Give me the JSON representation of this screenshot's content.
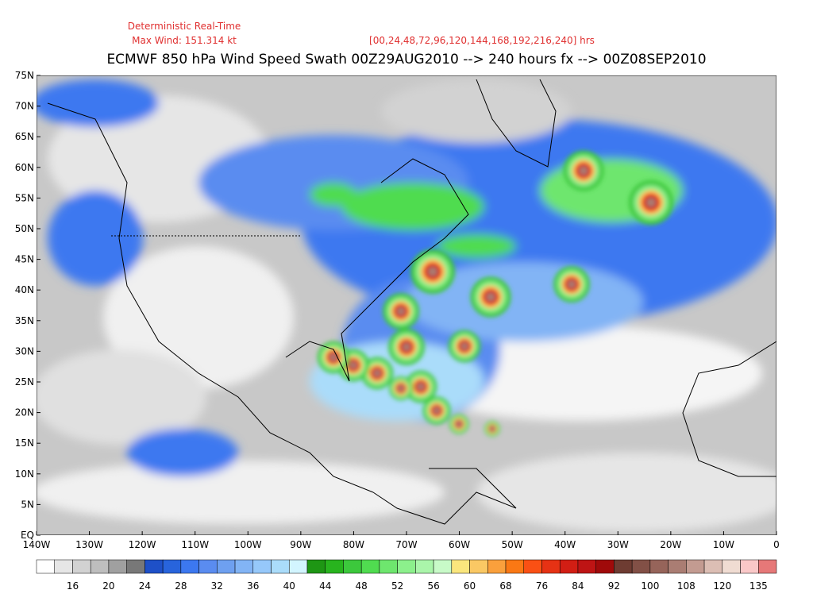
{
  "header": {
    "line1": "Deterministic Real-Time",
    "line2": "Max Wind: 151.314 kt",
    "hours": "[00,24,48,72,96,120,144,168,192,216,240] hrs",
    "title": "ECMWF 850 hPa Wind Speed Swath 00Z29AUG2010 --> 240 hours fx --> 00Z08SEP2010"
  },
  "map": {
    "lat_labels": [
      "75N",
      "70N",
      "65N",
      "60N",
      "55N",
      "50N",
      "45N",
      "40N",
      "35N",
      "30N",
      "25N",
      "20N",
      "15N",
      "10N",
      "5N",
      "EQ"
    ],
    "lon_labels": [
      "140W",
      "130W",
      "120W",
      "110W",
      "100W",
      "90W",
      "80W",
      "70W",
      "60W",
      "50W",
      "40W",
      "30W",
      "20W",
      "10W",
      "0"
    ]
  },
  "colorbar": {
    "colors": [
      "#ffffff",
      "#e6e6e6",
      "#d2d2d2",
      "#bebebe",
      "#a0a0a0",
      "#787878",
      "#1e50c8",
      "#2864dc",
      "#3c78f0",
      "#5a8cf0",
      "#6ea0f0",
      "#82b4f5",
      "#96c8fa",
      "#aadcfa",
      "#d2f5ff",
      "#1e9614",
      "#28b41e",
      "#3cc83c",
      "#50dc50",
      "#6ee66e",
      "#8cf08c",
      "#aaf5aa",
      "#c8fac8",
      "#fae67d",
      "#fac864",
      "#faa03c",
      "#fa7814",
      "#fa5014",
      "#e63214",
      "#d21e14",
      "#be1414",
      "#a00a0a",
      "#6e3c32",
      "#825046",
      "#96645a",
      "#aa7d73",
      "#c39b91",
      "#dcbeb4",
      "#f0dcd2",
      "#fac8c8",
      "#e67878"
    ],
    "labels": [
      16,
      20,
      24,
      28,
      32,
      36,
      40,
      44,
      48,
      52,
      56,
      60,
      68,
      76,
      84,
      92,
      100,
      108,
      120,
      135
    ]
  }
}
